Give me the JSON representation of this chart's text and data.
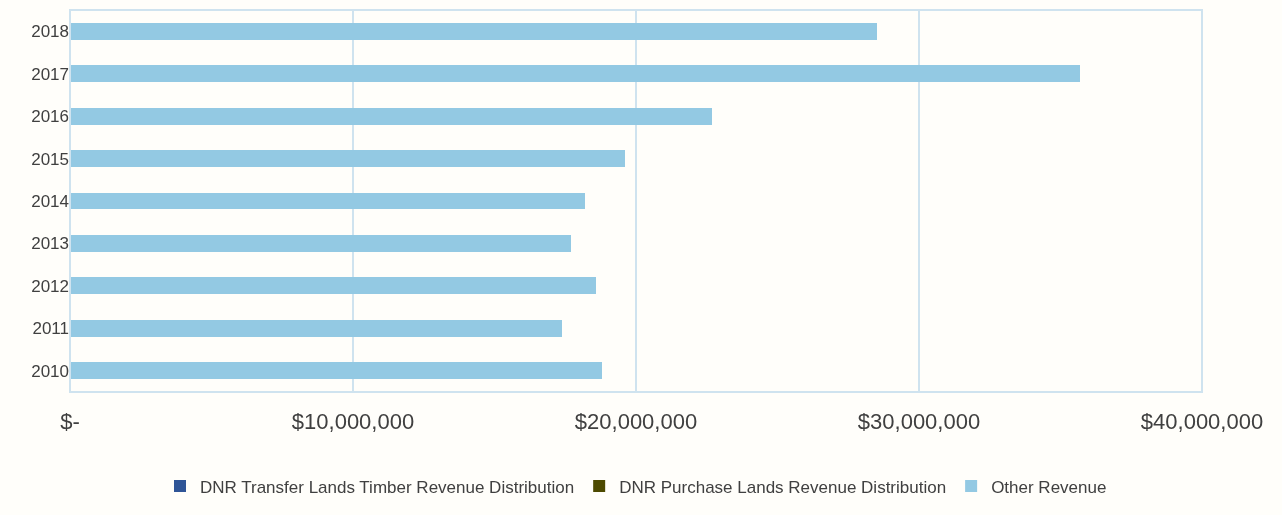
{
  "chart_data": {
    "type": "bar",
    "orientation": "horizontal",
    "stacked": true,
    "categories": [
      "2018",
      "2017",
      "2016",
      "2015",
      "2014",
      "2013",
      "2012",
      "2011",
      "2010"
    ],
    "series": [
      {
        "name": "DNR Transfer Lands Timber Revenue Distribution",
        "color": "#2f5597",
        "values": [
          0,
          0,
          0,
          0,
          0,
          0,
          0,
          0,
          0
        ]
      },
      {
        "name": "DNR Purchase Lands Revenue Distribution",
        "color": "#4d4a00",
        "values": [
          0,
          0,
          0,
          0,
          0,
          0,
          0,
          0,
          0
        ]
      },
      {
        "name": "Other Revenue",
        "color": "#93c9e3",
        "values": [
          28500000,
          35700000,
          22700000,
          19600000,
          18200000,
          17700000,
          18600000,
          17400000,
          18800000
        ]
      }
    ],
    "xlim": [
      0,
      40000000
    ],
    "xticks": [
      {
        "value": 0,
        "label": "$-"
      },
      {
        "value": 10000000,
        "label": "$10,000,000"
      },
      {
        "value": 20000000,
        "label": "$20,000,000"
      },
      {
        "value": 30000000,
        "label": "$30,000,000"
      },
      {
        "value": 40000000,
        "label": "$40,000,000"
      }
    ],
    "grid": "x",
    "legend": "bottom"
  }
}
